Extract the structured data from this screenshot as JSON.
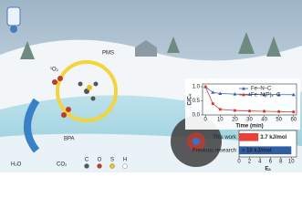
{
  "illustration": {
    "pms": "PMS",
    "singlet_oxygen": "¹O₂",
    "bpa": "BPA",
    "water": "H₂O",
    "co2": "CO₂",
    "element_legend": [
      "C",
      "O",
      "S",
      "H"
    ]
  },
  "chart_data": [
    {
      "type": "line",
      "x_label": "Time (min)",
      "y_label": "C/C₀",
      "x": [
        0,
        5,
        10,
        20,
        30,
        40,
        50,
        60
      ],
      "series": [
        {
          "name": "Fe–N–C",
          "color": "#3a5fb0",
          "marker": "triangle",
          "values": [
            1.0,
            0.8,
            0.76,
            0.74,
            0.73,
            0.72,
            0.72,
            0.72
          ]
        },
        {
          "name": "Fe–N(P)ₓ–C",
          "color": "#d0403a",
          "marker": "circle",
          "values": [
            1.0,
            0.4,
            0.2,
            0.16,
            0.14,
            0.13,
            0.12,
            0.11
          ]
        }
      ],
      "xlim": [
        -2,
        62
      ],
      "ylim": [
        0,
        1.1
      ],
      "xticks": [
        0,
        10,
        20,
        30,
        40,
        50,
        60
      ],
      "yticks": [
        {
          "value": 0,
          "label": "0.0"
        },
        {
          "value": 0.5,
          "label": "0.5"
        },
        {
          "value": 1,
          "label": "1.0"
        }
      ]
    },
    {
      "type": "bar",
      "orientation": "horizontal",
      "x_label": "Eₐ",
      "categories": [
        "This work",
        "Previous research"
      ],
      "values": [
        3.7,
        10
      ],
      "value_labels": [
        "3.7 kJ/mol",
        "> 10 kJ/mol"
      ],
      "colors": [
        "#e8413a",
        "#2f5fa0"
      ],
      "xlim": [
        0,
        11
      ],
      "xticks": [
        0,
        2,
        4,
        6,
        8,
        10
      ]
    }
  ]
}
